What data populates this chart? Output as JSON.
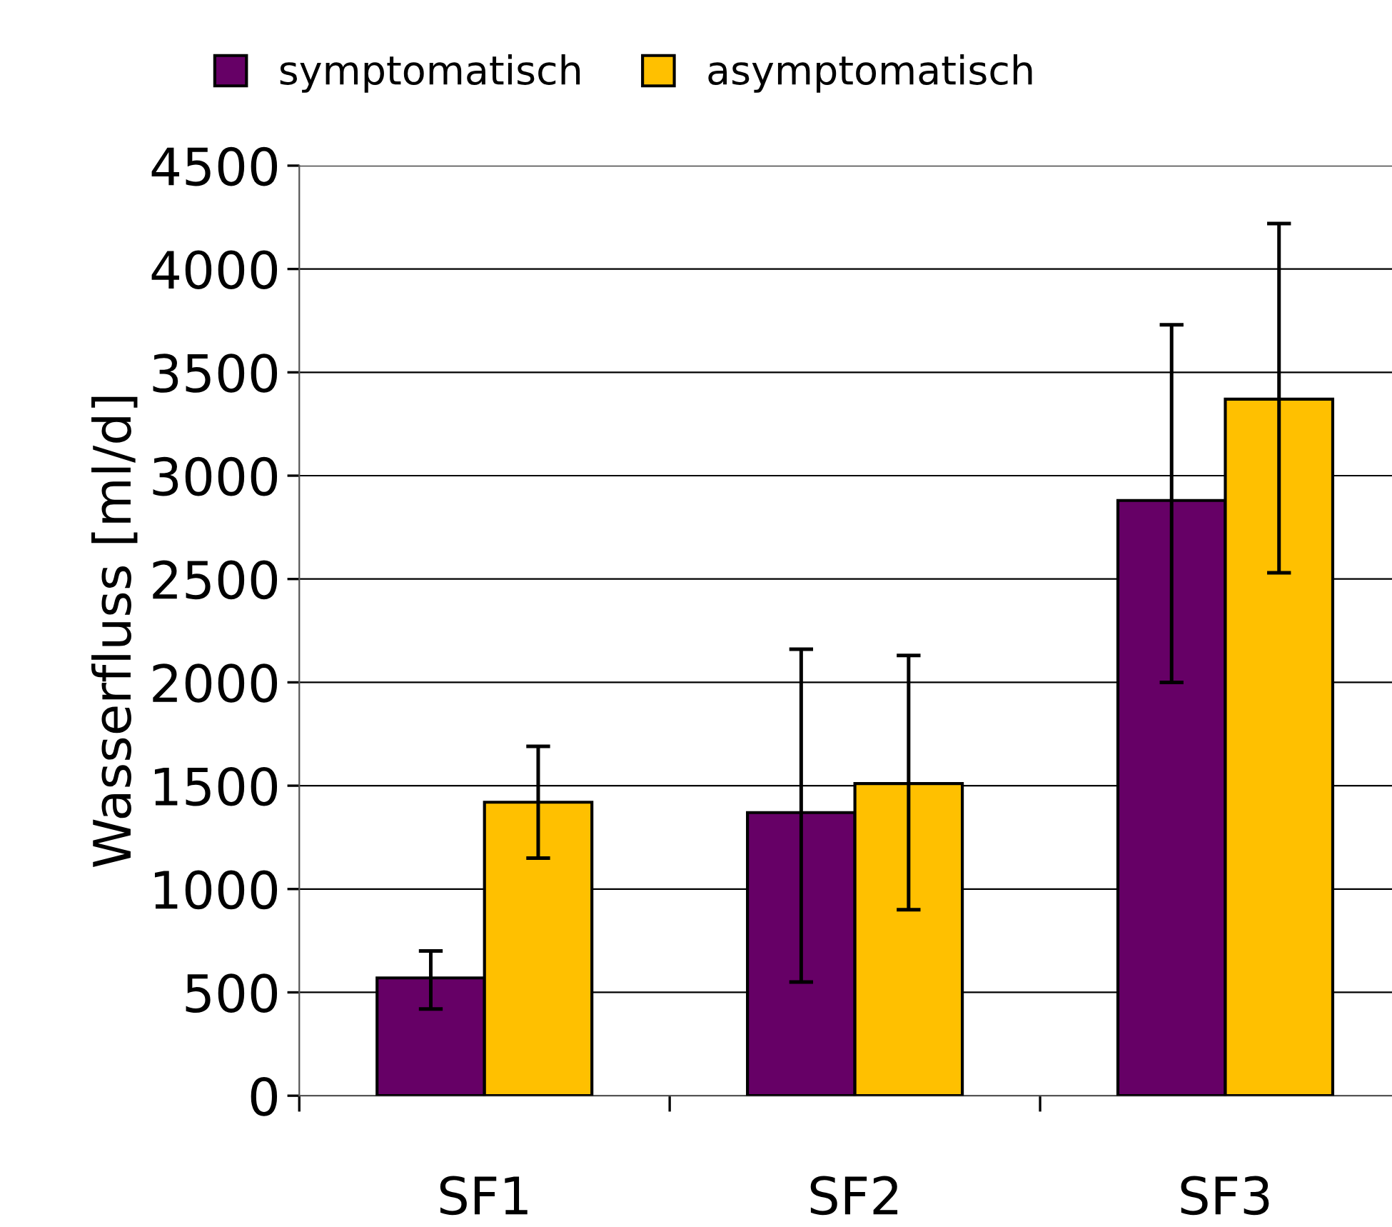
{
  "chart_data": {
    "type": "bar",
    "ylabel": "Wasserfluss [ml/d]",
    "categories": [
      "SF1",
      "SF2",
      "SF3"
    ],
    "series": [
      {
        "name": "symptomatisch",
        "color": "#660066",
        "values": [
          570,
          1370,
          2880
        ],
        "errors": [
          [
            420,
            700
          ],
          [
            550,
            2160
          ],
          [
            2000,
            3730
          ]
        ]
      },
      {
        "name": "asymptomatisch",
        "color": "#ffc000",
        "values": [
          1420,
          1510,
          3370
        ],
        "errors": [
          [
            1150,
            1690
          ],
          [
            900,
            2130
          ],
          [
            2530,
            4220
          ]
        ]
      }
    ],
    "ylim": [
      0,
      4500
    ],
    "yticks": [
      0,
      500,
      1000,
      1500,
      2000,
      2500,
      3000,
      3500,
      4000,
      4500
    ],
    "grid": "y",
    "legend": "top left"
  }
}
